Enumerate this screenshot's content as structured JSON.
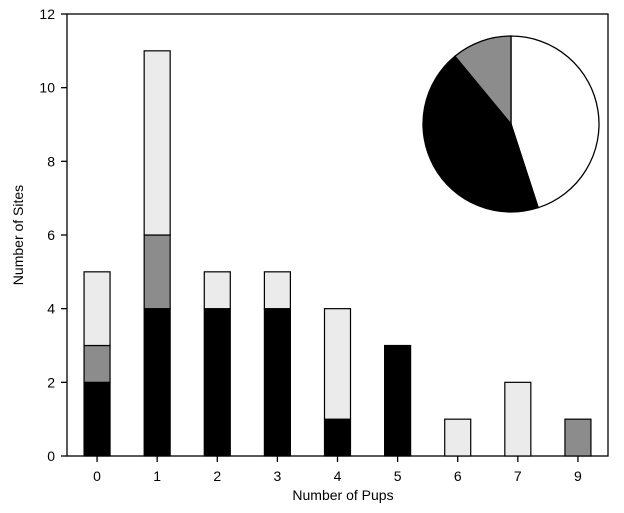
{
  "chart_data": [
    {
      "type": "bar",
      "stacked": true,
      "categories": [
        "0",
        "1",
        "2",
        "3",
        "4",
        "5",
        "6",
        "7",
        "9"
      ],
      "series": [
        {
          "color": "#000000",
          "values": [
            2,
            4,
            4,
            4,
            1,
            3,
            0,
            0,
            0
          ]
        },
        {
          "color": "#8c8c8c",
          "values": [
            1,
            2,
            0,
            0,
            0,
            0,
            0,
            0,
            1
          ]
        },
        {
          "color": "#ebebeb",
          "values": [
            2,
            5,
            1,
            1,
            3,
            0,
            1,
            2,
            0
          ]
        }
      ],
      "xlabel": "Number of Pups",
      "ylabel": "Number of Sites",
      "ylim": [
        0,
        12
      ],
      "yticks": [
        0,
        2,
        4,
        6,
        8,
        10,
        12
      ],
      "grid": false
    },
    {
      "type": "pie",
      "slices": [
        {
          "value": 45,
          "color": "#ffffff"
        },
        {
          "value": 44,
          "color": "#000000"
        },
        {
          "value": 11,
          "color": "#8c8c8c"
        }
      ],
      "start": "top",
      "direction": "clockwise"
    }
  ]
}
